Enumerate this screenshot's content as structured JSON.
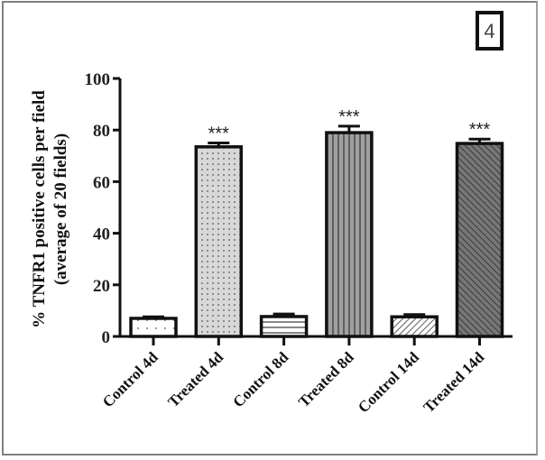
{
  "chart_data": {
    "type": "bar",
    "title": "",
    "panel_label": "4",
    "xlabel": "",
    "ylabel": "% TNFR1 positive cells per field",
    "ylabel_line2": "(average of 20 fields)",
    "ylim": [
      0,
      100
    ],
    "yticks": [
      "0",
      "20",
      "40",
      "60",
      "80",
      "100"
    ],
    "categories": [
      "Control 4d",
      "Treated 4d",
      "Control 8d",
      "Treated 8d",
      "Control 14d",
      "Treated 14d"
    ],
    "values": [
      7.0,
      73.5,
      7.7,
      79.0,
      7.6,
      74.8
    ],
    "error": [
      0.6,
      1.5,
      1.0,
      2.5,
      0.9,
      1.7
    ],
    "significance": [
      "",
      "***",
      "",
      "***",
      "",
      "***"
    ],
    "patterns": [
      "sparse-dots",
      "dense-dots",
      "horizontal-lines",
      "vertical-lines",
      "diagonal-lines",
      "dark-diagonal-lines"
    ],
    "grid": false,
    "legend": "none"
  }
}
